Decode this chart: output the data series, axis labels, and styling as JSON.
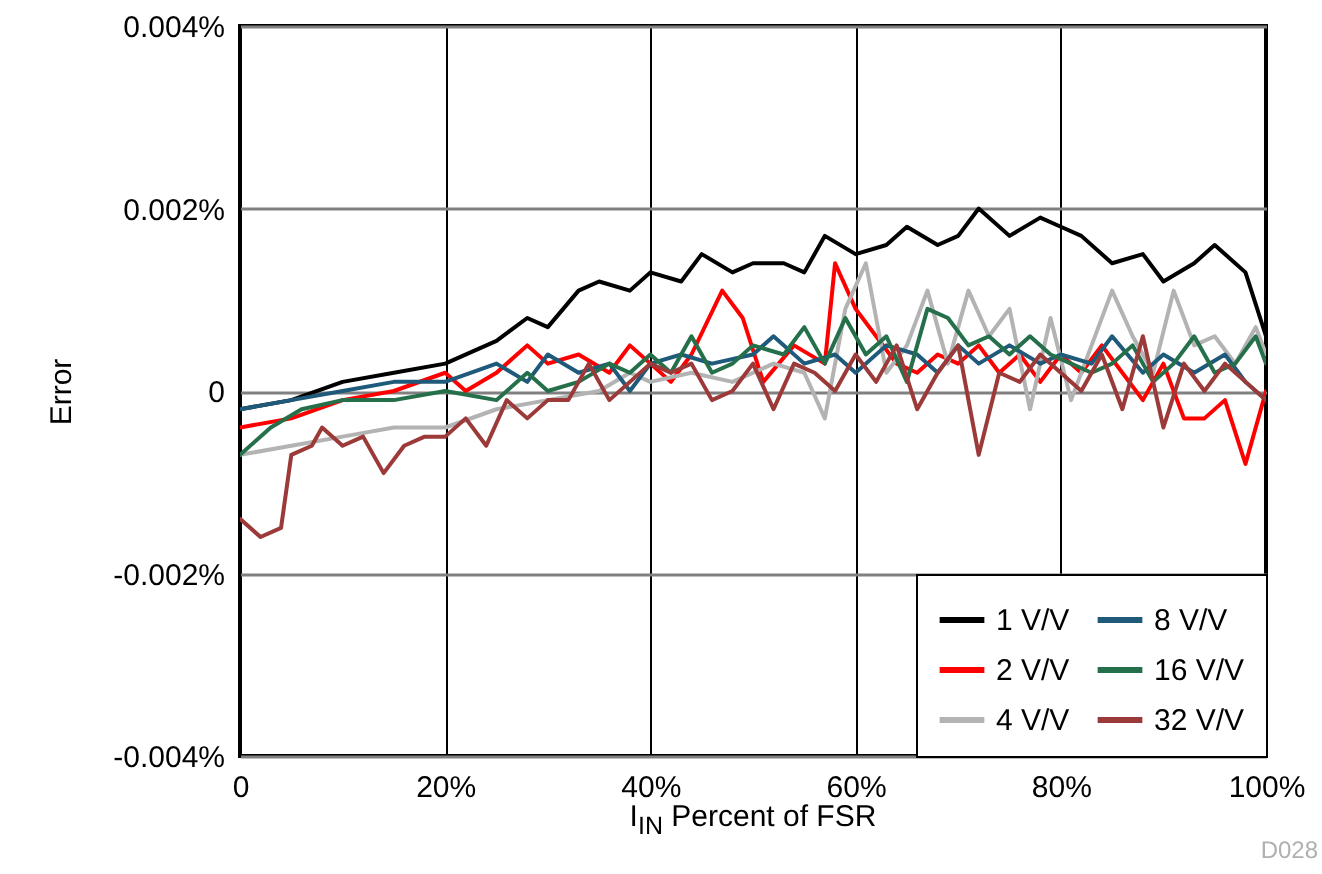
{
  "chart_data": {
    "type": "line",
    "xlabel": "I$_{IN}$ Percent of FSR",
    "ylabel": "Error",
    "xlim": [
      0,
      100
    ],
    "xticks": [
      {
        "value": 0,
        "label": "0"
      },
      {
        "value": 20,
        "label": "20%"
      },
      {
        "value": 40,
        "label": "40%"
      },
      {
        "value": 60,
        "label": "60%"
      },
      {
        "value": 80,
        "label": "80%"
      },
      {
        "value": 100,
        "label": "100%"
      }
    ],
    "ylim": [
      -0.004,
      0.004
    ],
    "yticks": [
      {
        "value": -0.004,
        "label": "-0.004%"
      },
      {
        "value": -0.002,
        "label": "-0.002%"
      },
      {
        "value": 0,
        "label": "0"
      },
      {
        "value": 0.002,
        "label": "0.002%"
      },
      {
        "value": 0.004,
        "label": "0.004%"
      }
    ],
    "grid": true,
    "legend": "bottom right",
    "line_style": "solid",
    "annotations": [
      "D028"
    ],
    "series": [
      {
        "name": "1 V/V",
        "color": "#000000",
        "x": [
          0,
          5,
          10,
          15,
          20,
          25,
          28,
          30,
          33,
          35,
          38,
          40,
          43,
          45,
          48,
          50,
          53,
          55,
          57,
          60,
          63,
          65,
          68,
          70,
          72,
          75,
          78,
          80,
          82,
          85,
          88,
          90,
          93,
          95,
          98,
          100
        ],
        "values": [
          -0.0002,
          -0.0001,
          0.0001,
          0.0002,
          0.0003,
          0.00055,
          0.0008,
          0.0007,
          0.0011,
          0.0012,
          0.0011,
          0.0013,
          0.0012,
          0.0015,
          0.0013,
          0.0014,
          0.0014,
          0.0013,
          0.0017,
          0.0015,
          0.0016,
          0.0018,
          0.0016,
          0.0017,
          0.002,
          0.0017,
          0.0019,
          0.0018,
          0.0017,
          0.0014,
          0.0015,
          0.0012,
          0.0014,
          0.0016,
          0.0013,
          0.0006
        ]
      },
      {
        "name": "2 V/V",
        "color": "#ff0000",
        "x": [
          0,
          5,
          10,
          15,
          20,
          22,
          25,
          28,
          30,
          33,
          36,
          38,
          40,
          42,
          44,
          47,
          49,
          51,
          54,
          57,
          58,
          60,
          62,
          64,
          66,
          68,
          70,
          72,
          74,
          76,
          78,
          80,
          82,
          84,
          86,
          88,
          90,
          92,
          94,
          96,
          98,
          100
        ],
        "values": [
          -0.0004,
          -0.0003,
          -0.0001,
          0,
          0.0002,
          0,
          0.0002,
          0.0005,
          0.0003,
          0.0004,
          0.0002,
          0.0005,
          0.0003,
          0.0001,
          0.0004,
          0.0011,
          0.0008,
          0.0001,
          0.0005,
          0.0003,
          0.0014,
          0.0009,
          0.0006,
          0.0003,
          0.0002,
          0.0004,
          0.0003,
          0.0005,
          0.0002,
          0.0004,
          0.0001,
          0.0004,
          0.0002,
          0.0005,
          0.0002,
          -0.0001,
          0.0003,
          -0.0003,
          -0.0003,
          -0.0001,
          -0.0008,
          0
        ]
      },
      {
        "name": "4 V/V",
        "color": "#b3b3b3",
        "x": [
          0,
          5,
          10,
          15,
          20,
          25,
          30,
          35,
          38,
          40,
          44,
          48,
          52,
          55,
          57,
          59,
          61,
          63,
          65,
          67,
          69,
          71,
          73,
          75,
          77,
          79,
          81,
          83,
          85,
          87,
          89,
          91,
          93,
          95,
          97,
          99,
          100
        ],
        "values": [
          -0.0007,
          -0.0006,
          -0.0005,
          -0.0004,
          -0.0004,
          -0.0002,
          -0.0001,
          0,
          0.0002,
          0.0001,
          0.0002,
          0.0001,
          0.0003,
          0.0002,
          -0.0003,
          0.0009,
          0.0014,
          0.0002,
          0.0005,
          0.0011,
          0.0003,
          0.0011,
          0.0006,
          0.0009,
          -0.0002,
          0.0008,
          -0.0001,
          0.0005,
          0.0011,
          0.0006,
          0.0002,
          0.0011,
          0.0005,
          0.0006,
          0.0003,
          0.0007,
          0.0004
        ]
      },
      {
        "name": "8 V/V",
        "color": "#1f5a7a",
        "x": [
          0,
          5,
          10,
          15,
          20,
          25,
          28,
          30,
          33,
          36,
          38,
          40,
          43,
          46,
          50,
          52,
          55,
          58,
          60,
          63,
          66,
          68,
          70,
          72,
          75,
          78,
          80,
          83,
          85,
          88,
          90,
          93,
          96,
          98,
          100
        ],
        "values": [
          -0.0002,
          -0.0001,
          0,
          0.0001,
          0.0001,
          0.0003,
          0.0001,
          0.0004,
          0.0002,
          0.0003,
          0,
          0.0003,
          0.0004,
          0.0003,
          0.0004,
          0.0006,
          0.0003,
          0.0004,
          0.0002,
          0.0005,
          0.0004,
          0.0002,
          0.0005,
          0.0003,
          0.0005,
          0.0003,
          0.0004,
          0.0003,
          0.0006,
          0.0002,
          0.0004,
          0.0002,
          0.0004,
          0.0001,
          -0.0001
        ]
      },
      {
        "name": "16 V/V",
        "color": "#25704a",
        "x": [
          0,
          3,
          6,
          10,
          15,
          20,
          25,
          28,
          30,
          33,
          36,
          38,
          40,
          42,
          44,
          46,
          48,
          50,
          53,
          55,
          57,
          59,
          61,
          63,
          65,
          67,
          69,
          71,
          73,
          75,
          77,
          79,
          81,
          83,
          85,
          87,
          89,
          91,
          93,
          95,
          97,
          99,
          100
        ],
        "values": [
          -0.0007,
          -0.0004,
          -0.0002,
          -0.0001,
          -0.0001,
          0,
          -0.0001,
          0.0002,
          0,
          0.0001,
          0.0003,
          0.0002,
          0.0004,
          0.0002,
          0.0006,
          0.0002,
          0.0003,
          0.0005,
          0.0004,
          0.0007,
          0.0003,
          0.0008,
          0.0004,
          0.0006,
          0.0001,
          0.0009,
          0.0008,
          0.0005,
          0.0006,
          0.0004,
          0.0006,
          0.0004,
          0.0003,
          0.0002,
          0.0003,
          0.0005,
          0.0001,
          0.0003,
          0.0006,
          0.0002,
          0.0003,
          0.0006,
          0.0003
        ]
      },
      {
        "name": "32 V/V",
        "color": "#9c3a3a",
        "x": [
          0,
          2,
          4,
          5,
          7,
          8,
          10,
          12,
          14,
          16,
          18,
          20,
          22,
          24,
          26,
          28,
          30,
          32,
          34,
          36,
          38,
          40,
          42,
          44,
          46,
          48,
          50,
          52,
          54,
          56,
          58,
          60,
          62,
          64,
          66,
          68,
          70,
          72,
          74,
          76,
          78,
          80,
          82,
          84,
          86,
          88,
          90,
          92,
          94,
          96,
          98,
          100
        ],
        "values": [
          -0.0014,
          -0.0016,
          -0.0015,
          -0.0007,
          -0.0006,
          -0.0004,
          -0.0006,
          -0.0005,
          -0.0009,
          -0.0006,
          -0.0005,
          -0.0005,
          -0.0003,
          -0.0006,
          -0.0001,
          -0.0003,
          -0.0001,
          -0.0001,
          0.0003,
          -0.0001,
          0.0001,
          0.0003,
          0.0002,
          0.0003,
          -0.0001,
          0,
          0.0003,
          -0.0002,
          0.0003,
          0.0002,
          0,
          0.0004,
          0.0001,
          0.0005,
          -0.0002,
          0.0002,
          0.0005,
          -0.0007,
          0.0002,
          0.0001,
          0.0004,
          0.0002,
          0,
          0.0004,
          -0.0002,
          0.0006,
          -0.0004,
          0.0003,
          0,
          0.0003,
          0.0001,
          -0.0001
        ]
      }
    ]
  }
}
